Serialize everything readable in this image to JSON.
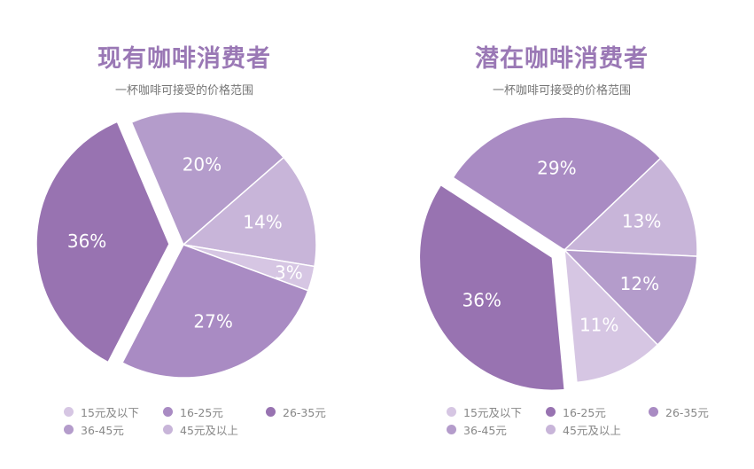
{
  "chart_data": [
    {
      "type": "pie",
      "title": "现有咖啡消费者",
      "subtitle": "一杯咖啡可接受的价格范围",
      "legend": [
        "15元及以下",
        "16-25元",
        "26-35元",
        "36-45元",
        "45元及以上"
      ],
      "colors": [
        "#d6c6e3",
        "#a98bc3",
        "#9873b1",
        "#b49ccb",
        "#c8b5d9"
      ],
      "slices": [
        {
          "label": "36-45元",
          "value": 20,
          "text": "20%"
        },
        {
          "label": "45元及以上",
          "value": 14,
          "text": "14%"
        },
        {
          "label": "15元及以下",
          "value": 3,
          "text": "3%"
        },
        {
          "label": "16-25元",
          "value": 27,
          "text": "27%"
        },
        {
          "label": "26-35元",
          "value": 36,
          "text": "36%",
          "exploded": true
        }
      ]
    },
    {
      "type": "pie",
      "title": "潜在咖啡消费者",
      "subtitle": "一杯咖啡可接受的价格范围",
      "legend": [
        "15元及以下",
        "16-25元",
        "26-35元",
        "36-45元",
        "45元及以上"
      ],
      "colors": [
        "#d6c6e3",
        "#9873b1",
        "#a98bc3",
        "#b49ccb",
        "#c8b5d9"
      ],
      "slices": [
        {
          "label": "26-35元",
          "value": 29,
          "text": "29%"
        },
        {
          "label": "45元及以上",
          "value": 13,
          "text": "13%"
        },
        {
          "label": "36-45元",
          "value": 12,
          "text": "12%"
        },
        {
          "label": "15元及以下",
          "value": 11,
          "text": "11%"
        },
        {
          "label": "16-25元",
          "value": 36,
          "text": "36%",
          "exploded": true
        }
      ]
    }
  ]
}
